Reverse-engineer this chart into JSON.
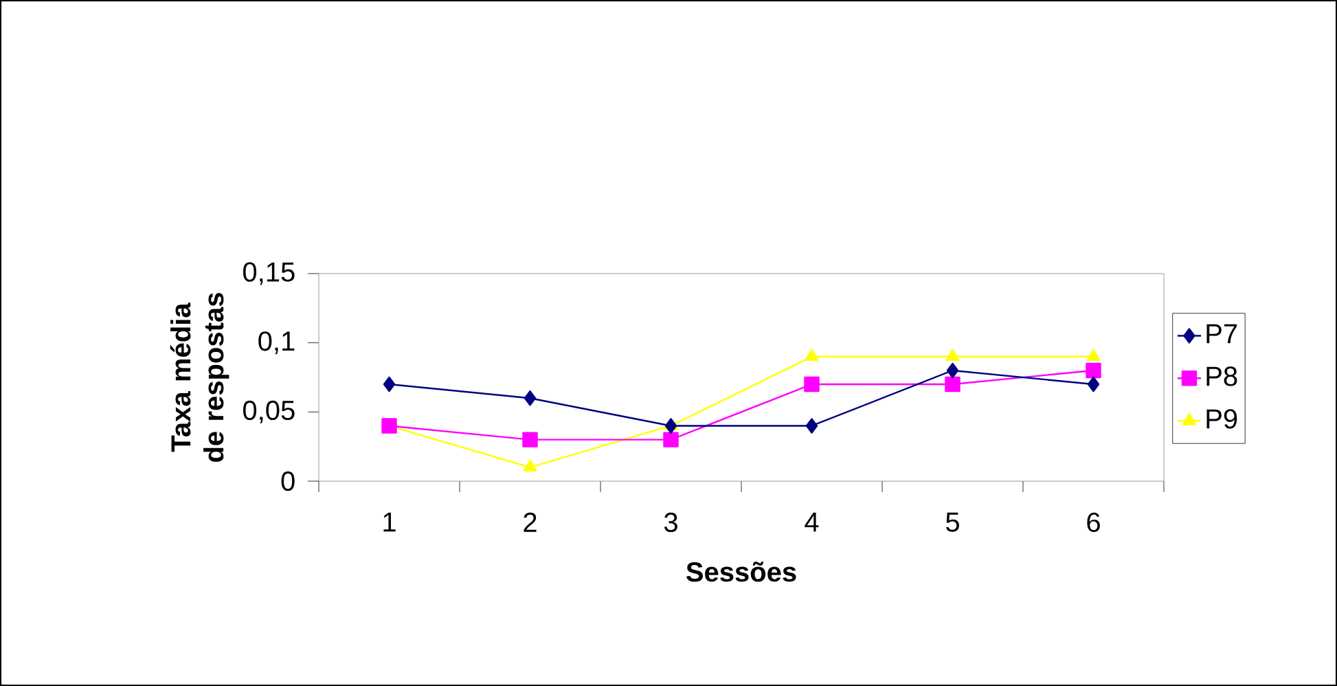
{
  "chart_data": {
    "type": "line",
    "xlabel": "Sessões",
    "ylabel": "Taxa média de respostas",
    "categories": [
      "1",
      "2",
      "3",
      "4",
      "5",
      "6"
    ],
    "series": [
      {
        "name": "P7",
        "color": "#000080",
        "marker": "diamond",
        "values": [
          0.07,
          0.06,
          0.04,
          0.04,
          0.08,
          0.07
        ]
      },
      {
        "name": "P8",
        "color": "#ff00ff",
        "marker": "square",
        "values": [
          0.04,
          0.03,
          0.03,
          0.07,
          0.07,
          0.08
        ]
      },
      {
        "name": "P9",
        "color": "#ffff00",
        "marker": "triangle",
        "values": [
          0.04,
          0.01,
          0.04,
          0.09,
          0.09,
          0.09
        ]
      }
    ],
    "ylim": [
      0,
      0.15
    ],
    "yticks": [
      0,
      {
        "value": 0.05,
        "label": "0,05"
      },
      {
        "value": 0.1,
        "label": "0,1"
      },
      {
        "value": 0.15,
        "label": "0,15"
      }
    ],
    "grid": false,
    "legend": "right",
    "line_style": "solid"
  }
}
